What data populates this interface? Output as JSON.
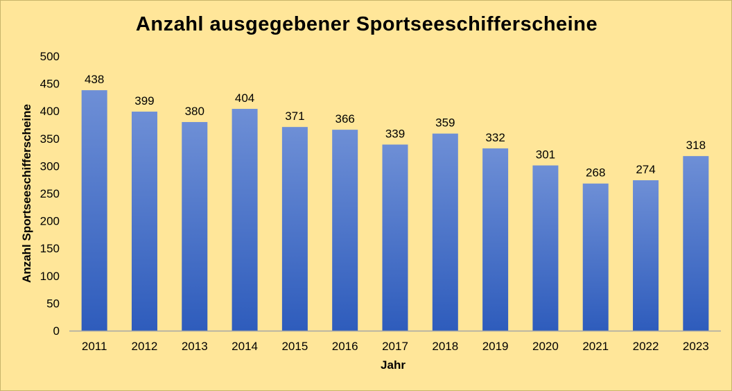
{
  "chart_data": {
    "type": "bar",
    "title": "Anzahl ausgegebener Sportseeschifferscheine",
    "xlabel": "Jahr",
    "ylabel": "Anzahl Sportseeschifferscheine",
    "categories": [
      "2011",
      "2012",
      "2013",
      "2014",
      "2015",
      "2016",
      "2017",
      "2018",
      "2019",
      "2020",
      "2021",
      "2022",
      "2023"
    ],
    "values": [
      438,
      399,
      380,
      404,
      371,
      366,
      339,
      359,
      332,
      301,
      268,
      274,
      318
    ],
    "ylim": [
      0,
      500
    ],
    "yticks": [
      0,
      50,
      100,
      150,
      200,
      250,
      300,
      350,
      400,
      450,
      500
    ],
    "grid": false,
    "legend": "none",
    "data_labels": true,
    "colors": {
      "background": "#ffe699",
      "bar_top": "#6e8fd6",
      "bar_bottom": "#2e5cbc",
      "axis": "#a6a6a6"
    }
  }
}
